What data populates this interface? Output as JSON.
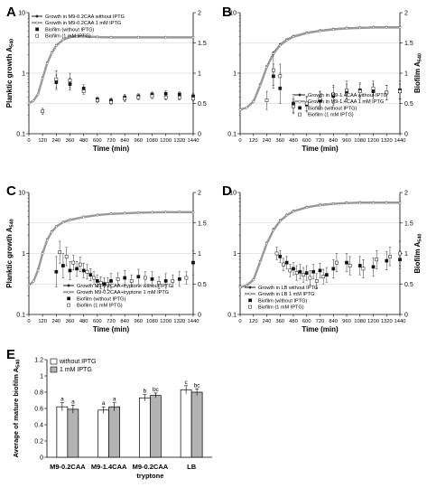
{
  "figure": {
    "panel_titles": [
      "A",
      "B",
      "C",
      "D",
      "E"
    ]
  },
  "chart_data": [
    {
      "panel": "A",
      "type": "scatter",
      "ylabel_left": "Planktic growth A540",
      "ylabel_right": "",
      "xlabel": "Time (min)",
      "xlim": [
        0,
        1440
      ],
      "x_ticks": [
        0,
        120,
        240,
        360,
        480,
        600,
        720,
        840,
        960,
        1080,
        1200,
        1320,
        1440
      ],
      "ylim_left_log": [
        0.1,
        10
      ],
      "y_ticks_left": [
        0.1,
        1,
        10
      ],
      "ylim_right": [
        0,
        2
      ],
      "y_ticks_right": [
        0,
        0.5,
        1,
        1.5,
        2
      ],
      "grid_right_y": [
        0.5,
        1,
        1.5
      ],
      "legend": [
        "Growth in M9-0.2CAA without IPTG",
        "Growth in M9-0.2CAA 1 mM IPTG",
        "Biofilm (without IPTG)",
        "Biofilm (1 mM IPTG)"
      ],
      "growth_curves": [
        {
          "name": "Growth in M9-0.2CAA without IPTG",
          "x": [
            0,
            40,
            80,
            120,
            160,
            200,
            240,
            300,
            360,
            420,
            480,
            600,
            720,
            960,
            1200,
            1440
          ],
          "y": [
            0.32,
            0.35,
            0.45,
            0.85,
            1.5,
            2.2,
            2.9,
            3.6,
            4.0,
            4.1,
            4.1,
            4.0,
            3.95,
            3.95,
            3.95,
            3.95
          ]
        },
        {
          "name": "Growth in M9-0.2CAA 1 mM IPTG",
          "x": [
            0,
            40,
            80,
            120,
            160,
            200,
            240,
            300,
            360,
            420,
            480,
            600,
            720,
            960,
            1200,
            1440
          ],
          "y": [
            0.32,
            0.35,
            0.45,
            0.82,
            1.45,
            2.15,
            2.85,
            3.55,
            3.95,
            4.05,
            4.05,
            3.95,
            3.9,
            3.9,
            3.9,
            3.9
          ]
        }
      ],
      "biofilm": [
        {
          "name": "Biofilm (without IPTG)",
          "x": [
            240,
            360,
            480,
            600,
            720,
            840,
            960,
            1080,
            1200,
            1320,
            1440
          ],
          "y": [
            0.85,
            0.82,
            0.75,
            0.57,
            0.55,
            0.6,
            0.62,
            0.65,
            0.66,
            0.65,
            0.62
          ],
          "err": [
            0.12,
            0.1,
            0.06,
            0.04,
            0.04,
            0.05,
            0.04,
            0.04,
            0.05,
            0.04,
            0.04
          ]
        },
        {
          "name": "Biofilm (1 mM IPTG)",
          "x": [
            120,
            240,
            360,
            480,
            600,
            720,
            840,
            960,
            1080,
            1200,
            1320,
            1440
          ],
          "y": [
            0.37,
            0.9,
            0.88,
            0.7,
            0.55,
            0.52,
            0.58,
            0.6,
            0.62,
            0.6,
            0.6,
            0.58
          ],
          "err": [
            0.05,
            0.14,
            0.12,
            0.05,
            0.04,
            0.04,
            0.05,
            0.04,
            0.04,
            0.04,
            0.04,
            0.04
          ]
        }
      ]
    },
    {
      "panel": "B",
      "type": "scatter",
      "ylabel_left": "",
      "ylabel_right": "Biofilm A540",
      "xlabel": "Time (min)",
      "xlim": [
        0,
        1440
      ],
      "x_ticks": [
        0,
        120,
        240,
        360,
        480,
        600,
        720,
        840,
        960,
        1080,
        1200,
        1320,
        1440
      ],
      "ylim_left_log": [
        0.1,
        10
      ],
      "y_ticks_left": [
        0.1,
        1,
        10
      ],
      "ylim_right": [
        0,
        2
      ],
      "y_ticks_right": [
        0,
        0.5,
        1,
        1.5,
        2
      ],
      "grid_right_y": [
        0.5,
        1,
        1.5
      ],
      "legend": [
        "Growth in M9-1.4CAA without IPTG",
        "Growth in M9-1.4CAA 1 mM IPTG",
        "Biofilm (without IPTG)",
        "Biofilm (1 mM IPTG)"
      ],
      "growth_curves": [
        {
          "name": "Growth in M9-1.4CAA without IPTG",
          "x": [
            0,
            60,
            120,
            180,
            240,
            300,
            360,
            420,
            480,
            600,
            720,
            840,
            960,
            1080,
            1200,
            1320,
            1440
          ],
          "y": [
            0.25,
            0.27,
            0.35,
            0.65,
            1.3,
            2.2,
            3.0,
            3.6,
            4.1,
            4.7,
            5.1,
            5.4,
            5.6,
            5.7,
            5.8,
            5.8,
            5.8
          ]
        },
        {
          "name": "Growth in M9-1.4CAA 1 mM IPTG",
          "x": [
            0,
            60,
            120,
            180,
            240,
            300,
            360,
            420,
            480,
            600,
            720,
            840,
            960,
            1080,
            1200,
            1320,
            1440
          ],
          "y": [
            0.25,
            0.27,
            0.34,
            0.62,
            1.25,
            2.1,
            2.9,
            3.5,
            4.0,
            4.6,
            5.0,
            5.3,
            5.5,
            5.6,
            5.7,
            5.7,
            5.7
          ]
        }
      ],
      "biofilm": [
        {
          "name": "Biofilm (without IPTG)",
          "x": [
            300,
            360,
            480,
            600,
            720,
            840,
            960,
            1080,
            1200,
            1320,
            1440
          ],
          "y": [
            0.95,
            0.75,
            0.5,
            0.48,
            0.55,
            0.62,
            0.7,
            0.72,
            0.7,
            0.68,
            0.72
          ],
          "err": [
            0.2,
            0.25,
            0.15,
            0.12,
            0.15,
            0.15,
            0.12,
            0.12,
            0.12,
            0.12,
            0.15
          ]
        },
        {
          "name": "Biofilm (1 mM IPTG)",
          "x": [
            240,
            300,
            360,
            480,
            600,
            720,
            840,
            960,
            1080,
            1200,
            1320,
            1440
          ],
          "y": [
            0.55,
            1.05,
            0.95,
            0.45,
            0.5,
            0.58,
            0.65,
            0.72,
            0.7,
            0.75,
            0.68,
            0.7
          ],
          "err": [
            0.15,
            0.25,
            0.2,
            0.12,
            0.12,
            0.12,
            0.15,
            0.15,
            0.12,
            0.12,
            0.12,
            0.12
          ]
        }
      ]
    },
    {
      "panel": "C",
      "type": "scatter",
      "ylabel_left": "Planktic growth A540",
      "ylabel_right": "",
      "xlabel": "Time (min)",
      "xlim": [
        0,
        1440
      ],
      "x_ticks": [
        0,
        120,
        240,
        360,
        480,
        600,
        720,
        840,
        960,
        1080,
        1200,
        1320,
        1440
      ],
      "ylim_left_log": [
        0.1,
        10
      ],
      "y_ticks_left": [
        0.1,
        1,
        10
      ],
      "ylim_right": [
        0,
        2
      ],
      "y_ticks_right": [
        0,
        0.5,
        1,
        1.5,
        2
      ],
      "grid_right_y": [
        0.5,
        1,
        1.5
      ],
      "legend": [
        "Growth M9-0.2CAA+tryptone without IPTG",
        "Growth M9-0.2CAA+tryptone 1 mM IPTG",
        "Biofilm (without IPTG)",
        "Biofilm (1 mM IPTG)"
      ],
      "growth_curves": [
        {
          "name": "Growth M9-0.2CAA+tryptone without IPTG",
          "x": [
            0,
            40,
            80,
            120,
            160,
            200,
            240,
            300,
            360,
            480,
            600,
            720,
            840,
            960,
            1080,
            1200,
            1320,
            1440
          ],
          "y": [
            0.3,
            0.35,
            0.55,
            1.05,
            1.7,
            2.3,
            2.8,
            3.3,
            3.6,
            4.0,
            4.3,
            4.5,
            4.6,
            4.7,
            4.75,
            4.8,
            4.8,
            4.8
          ]
        },
        {
          "name": "Growth M9-0.2CAA+tryptone 1 mM IPTG",
          "x": [
            0,
            40,
            80,
            120,
            160,
            200,
            240,
            300,
            360,
            480,
            600,
            720,
            840,
            960,
            1080,
            1200,
            1320,
            1440
          ],
          "y": [
            0.3,
            0.35,
            0.53,
            1.0,
            1.65,
            2.25,
            2.75,
            3.25,
            3.55,
            3.95,
            4.25,
            4.45,
            4.55,
            4.65,
            4.7,
            4.75,
            4.75,
            4.75
          ]
        }
      ],
      "biofilm": [
        {
          "name": "Biofilm (without IPTG)",
          "x": [
            240,
            300,
            360,
            420,
            480,
            540,
            600,
            660,
            720,
            840,
            960,
            1080,
            1200,
            1320,
            1440
          ],
          "y": [
            0.7,
            0.8,
            0.72,
            0.75,
            0.72,
            0.65,
            0.55,
            0.5,
            0.55,
            0.6,
            0.62,
            0.58,
            0.55,
            0.58,
            0.85
          ],
          "err": [
            0.25,
            0.2,
            0.15,
            0.12,
            0.12,
            0.1,
            0.1,
            0.1,
            0.12,
            0.12,
            0.12,
            0.12,
            0.12,
            0.12,
            0.2
          ]
        },
        {
          "name": "Biofilm (1 mM IPTG)",
          "x": [
            270,
            330,
            390,
            450,
            510,
            570,
            630,
            690,
            780,
            900,
            1020,
            1140,
            1260,
            1380
          ],
          "y": [
            1.02,
            0.95,
            0.85,
            0.82,
            0.7,
            0.6,
            0.52,
            0.5,
            0.58,
            0.55,
            0.6,
            0.52,
            0.55,
            0.6
          ],
          "err": [
            0.18,
            0.15,
            0.12,
            0.12,
            0.12,
            0.1,
            0.1,
            0.1,
            0.1,
            0.1,
            0.1,
            0.1,
            0.1,
            0.1
          ]
        }
      ]
    },
    {
      "panel": "D",
      "type": "scatter",
      "ylabel_left": "",
      "ylabel_right": "Biofilm A540",
      "xlabel": "Time (min)",
      "xlim": [
        0,
        1440
      ],
      "x_ticks": [
        0,
        120,
        240,
        360,
        480,
        600,
        720,
        840,
        960,
        1080,
        1200,
        1320,
        1440
      ],
      "ylim_left_log": [
        0.1,
        10
      ],
      "y_ticks_left": [
        0.1,
        1,
        10
      ],
      "ylim_right": [
        0,
        2
      ],
      "y_ticks_right": [
        0,
        0.5,
        1,
        1.5,
        2
      ],
      "grid_right_y": [
        0.5,
        1,
        1.5
      ],
      "legend": [
        "Growth in LB without IPTG",
        "Growth in LB 1 mM IPTG",
        "Biofilm (without IPTG)",
        "Biofilm (1 mM IPTG)"
      ],
      "growth_curves": [
        {
          "name": "Growth in LB without IPTG",
          "x": [
            0,
            60,
            120,
            180,
            240,
            300,
            360,
            420,
            480,
            600,
            720,
            840,
            960,
            1080,
            1200,
            1320,
            1440
          ],
          "y": [
            0.28,
            0.3,
            0.38,
            0.75,
            1.5,
            2.5,
            3.5,
            4.3,
            5.0,
            5.8,
            6.3,
            6.6,
            6.8,
            6.9,
            6.9,
            6.9,
            6.9
          ]
        },
        {
          "name": "Growth in LB 1 mM IPTG",
          "x": [
            0,
            60,
            120,
            180,
            240,
            300,
            360,
            420,
            480,
            600,
            720,
            840,
            960,
            1080,
            1200,
            1320,
            1440
          ],
          "y": [
            0.28,
            0.3,
            0.37,
            0.72,
            1.45,
            2.4,
            3.4,
            4.2,
            4.9,
            5.7,
            6.2,
            6.5,
            6.7,
            6.8,
            6.8,
            6.8,
            6.8
          ]
        }
      ],
      "biofilm": [
        {
          "name": "Biofilm (without IPTG)",
          "x": [
            360,
            420,
            480,
            540,
            600,
            660,
            720,
            780,
            840,
            960,
            1080,
            1200,
            1320,
            1440
          ],
          "y": [
            0.95,
            0.85,
            0.75,
            0.7,
            0.68,
            0.7,
            0.72,
            0.65,
            0.75,
            0.85,
            0.8,
            0.78,
            0.88,
            0.9
          ],
          "err": [
            0.1,
            0.1,
            0.1,
            0.12,
            0.12,
            0.12,
            0.12,
            0.12,
            0.15,
            0.15,
            0.15,
            0.15,
            0.15,
            0.15
          ]
        },
        {
          "name": "Biofilm (1 mM IPTG)",
          "x": [
            330,
            390,
            450,
            510,
            570,
            630,
            690,
            750,
            870,
            990,
            1110,
            1230,
            1350,
            1440
          ],
          "y": [
            1.0,
            0.82,
            0.72,
            0.68,
            0.65,
            0.6,
            0.55,
            0.62,
            0.85,
            0.8,
            0.75,
            0.9,
            0.95,
            1.0
          ],
          "err": [
            0.1,
            0.1,
            0.1,
            0.12,
            0.12,
            0.12,
            0.12,
            0.12,
            0.15,
            0.15,
            0.15,
            0.15,
            0.15,
            0.2
          ]
        }
      ]
    },
    {
      "panel": "E",
      "type": "bar",
      "ylabel": "Average of mature biofilm A540",
      "ylim": [
        0,
        1.2
      ],
      "y_ticks": [
        0,
        0.2,
        0.4,
        0.6,
        0.8,
        1,
        1.2
      ],
      "categories": [
        "M9-0.2CAA",
        "M9-1.4CAA",
        "M9-0.2CAA tryptone",
        "LB"
      ],
      "category_lines": [
        [
          "M9-0.2CAA"
        ],
        [
          "M9-1.4CAA"
        ],
        [
          "M9-0.2CAA",
          "tryptone"
        ],
        [
          "LB"
        ]
      ],
      "series": [
        {
          "name": "without IPTG",
          "color": "#ffffff",
          "values": [
            0.62,
            0.58,
            0.73,
            0.83
          ],
          "err": [
            0.05,
            0.04,
            0.04,
            0.05
          ],
          "letters": [
            "a",
            "a",
            "b",
            "c"
          ]
        },
        {
          "name": "1 mM IPTG",
          "color": "#b3b3b3",
          "values": [
            0.59,
            0.62,
            0.76,
            0.8
          ],
          "err": [
            0.05,
            0.05,
            0.03,
            0.04
          ],
          "letters": [
            "a",
            "a",
            "bc",
            "bc"
          ]
        }
      ]
    }
  ]
}
